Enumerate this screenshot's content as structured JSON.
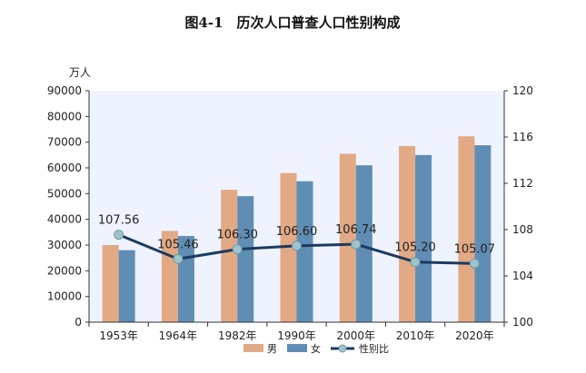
{
  "chart_data": {
    "type": "bar",
    "title": "图4-1　历次人口普查人口性别构成",
    "ylabel": "万人",
    "categories": [
      "1953年",
      "1964年",
      "1982年",
      "1990年",
      "2000年",
      "2010年",
      "2020年"
    ],
    "ylim": [
      0,
      90000
    ],
    "y_ticks": [
      "0",
      "10000",
      "20000",
      "30000",
      "40000",
      "50000",
      "60000",
      "70000",
      "80000",
      "90000"
    ],
    "y2lim": [
      100,
      120
    ],
    "y2_ticks": [
      "100",
      "104",
      "108",
      "112",
      "116",
      "120"
    ],
    "series": [
      {
        "name": "男",
        "type": "bar",
        "axis": "left",
        "color": "#e2a985",
        "values": [
          30000,
          35500,
          51500,
          58000,
          65500,
          68500,
          72300
        ]
      },
      {
        "name": "女",
        "type": "bar",
        "axis": "left",
        "color": "#5f8db4",
        "values": [
          28000,
          33500,
          49000,
          54800,
          61000,
          65000,
          68800
        ]
      },
      {
        "name": "性别比",
        "type": "line",
        "axis": "right",
        "color": "#1d3a5f",
        "marker_color": "#9fc3cc",
        "values": [
          107.56,
          105.46,
          106.3,
          106.6,
          106.74,
          105.2,
          105.07
        ],
        "labels": [
          "107.56",
          "105.46",
          "106.30",
          "106.60",
          "106.74",
          "105.20",
          "105.07"
        ]
      }
    ],
    "grid": false,
    "legend": "bottom-center",
    "plot_background": "#eef3ff"
  }
}
